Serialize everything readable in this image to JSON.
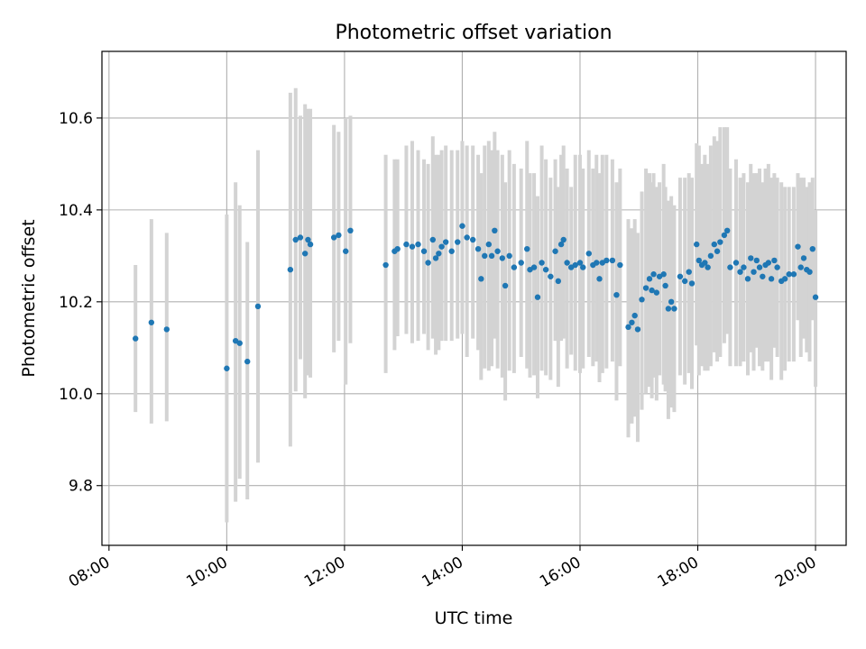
{
  "chart_data": {
    "type": "scatter",
    "title": "Photometric offset variation",
    "xlabel": "UTC time",
    "ylabel": "Photometric offset",
    "x_unit": "hours UTC",
    "xlim": [
      7.88,
      20.52
    ],
    "ylim": [
      9.67,
      10.745
    ],
    "xticks": [
      {
        "v": 8,
        "label": "08:00"
      },
      {
        "v": 10,
        "label": "10:00"
      },
      {
        "v": 12,
        "label": "12:00"
      },
      {
        "v": 14,
        "label": "14:00"
      },
      {
        "v": 16,
        "label": "16:00"
      },
      {
        "v": 18,
        "label": "18:00"
      },
      {
        "v": 20,
        "label": "20:00"
      }
    ],
    "yticks": [
      {
        "v": 9.8,
        "label": "9.8"
      },
      {
        "v": 10.0,
        "label": "10.0"
      },
      {
        "v": 10.2,
        "label": "10.2"
      },
      {
        "v": 10.4,
        "label": "10.4"
      },
      {
        "v": 10.6,
        "label": "10.6"
      }
    ],
    "grid": true,
    "marker_color": "#1f77b4",
    "errorbar_color": "#d3d3d3",
    "points": [
      [
        8.45,
        10.12,
        10.28,
        9.96
      ],
      [
        8.72,
        10.155,
        10.38,
        9.935
      ],
      [
        8.98,
        10.14,
        10.35,
        9.94
      ],
      [
        10.0,
        10.055,
        10.39,
        9.72
      ],
      [
        10.15,
        10.115,
        10.46,
        9.765
      ],
      [
        10.22,
        10.11,
        10.41,
        9.815
      ],
      [
        10.35,
        10.07,
        10.33,
        9.77
      ],
      [
        10.53,
        10.19,
        10.53,
        9.85
      ],
      [
        11.08,
        10.27,
        10.655,
        9.885
      ],
      [
        11.17,
        10.335,
        10.665,
        10.005
      ],
      [
        11.25,
        10.34,
        10.605,
        10.075
      ],
      [
        11.33,
        10.305,
        10.63,
        9.99
      ],
      [
        11.38,
        10.335,
        10.62,
        10.04
      ],
      [
        11.42,
        10.325,
        10.62,
        10.035
      ],
      [
        11.82,
        10.34,
        10.585,
        10.09
      ],
      [
        11.9,
        10.345,
        10.57,
        10.115
      ],
      [
        12.02,
        10.31,
        10.6,
        10.02
      ],
      [
        12.1,
        10.355,
        10.605,
        10.11
      ],
      [
        12.7,
        10.28,
        10.52,
        10.045
      ],
      [
        12.85,
        10.31,
        10.51,
        10.095
      ],
      [
        12.9,
        10.315,
        10.51,
        10.125
      ],
      [
        13.05,
        10.325,
        10.54,
        10.13
      ],
      [
        13.15,
        10.32,
        10.55,
        10.11
      ],
      [
        13.25,
        10.325,
        10.53,
        10.115
      ],
      [
        13.35,
        10.31,
        10.51,
        10.13
      ],
      [
        13.42,
        10.285,
        10.5,
        10.095
      ],
      [
        13.5,
        10.335,
        10.56,
        10.12
      ],
      [
        13.55,
        10.295,
        10.52,
        10.085
      ],
      [
        13.6,
        10.305,
        10.52,
        10.095
      ],
      [
        13.65,
        10.32,
        10.53,
        10.115
      ],
      [
        13.72,
        10.33,
        10.54,
        10.115
      ],
      [
        13.82,
        10.31,
        10.53,
        10.115
      ],
      [
        13.92,
        10.33,
        10.53,
        10.12
      ],
      [
        14.0,
        10.365,
        10.55,
        10.13
      ],
      [
        14.08,
        10.34,
        10.54,
        10.08
      ],
      [
        14.18,
        10.335,
        10.54,
        10.12
      ],
      [
        14.27,
        10.315,
        10.52,
        10.095
      ],
      [
        14.32,
        10.25,
        10.48,
        10.03
      ],
      [
        14.38,
        10.3,
        10.54,
        10.055
      ],
      [
        14.45,
        10.325,
        10.55,
        10.05
      ],
      [
        14.5,
        10.3,
        10.53,
        10.06
      ],
      [
        14.55,
        10.355,
        10.57,
        10.12
      ],
      [
        14.6,
        10.31,
        10.53,
        10.055
      ],
      [
        14.68,
        10.295,
        10.52,
        10.035
      ],
      [
        14.73,
        10.235,
        10.46,
        9.985
      ],
      [
        14.8,
        10.3,
        10.53,
        10.05
      ],
      [
        14.88,
        10.275,
        10.5,
        10.045
      ],
      [
        15.0,
        10.285,
        10.49,
        10.08
      ],
      [
        15.1,
        10.315,
        10.55,
        10.055
      ],
      [
        15.15,
        10.27,
        10.48,
        10.035
      ],
      [
        15.22,
        10.275,
        10.48,
        10.04
      ],
      [
        15.28,
        10.21,
        10.43,
        9.99
      ],
      [
        15.35,
        10.285,
        10.54,
        10.05
      ],
      [
        15.42,
        10.27,
        10.51,
        10.04
      ],
      [
        15.5,
        10.255,
        10.47,
        10.03
      ],
      [
        15.58,
        10.31,
        10.51,
        10.115
      ],
      [
        15.63,
        10.245,
        10.45,
        10.015
      ],
      [
        15.68,
        10.325,
        10.52,
        10.115
      ],
      [
        15.72,
        10.335,
        10.54,
        10.12
      ],
      [
        15.78,
        10.285,
        10.49,
        10.055
      ],
      [
        15.85,
        10.275,
        10.45,
        10.085
      ],
      [
        15.92,
        10.28,
        10.52,
        10.05
      ],
      [
        16.0,
        10.285,
        10.52,
        10.045
      ],
      [
        16.05,
        10.275,
        10.49,
        10.055
      ],
      [
        16.15,
        10.305,
        10.53,
        10.08
      ],
      [
        16.22,
        10.28,
        10.49,
        10.06
      ],
      [
        16.28,
        10.285,
        10.52,
        10.07
      ],
      [
        16.33,
        10.25,
        10.48,
        10.025
      ],
      [
        16.38,
        10.285,
        10.52,
        10.045
      ],
      [
        16.45,
        10.29,
        10.52,
        10.055
      ],
      [
        16.55,
        10.29,
        10.51,
        10.07
      ],
      [
        16.62,
        10.215,
        10.46,
        9.985
      ],
      [
        16.68,
        10.28,
        10.49,
        10.06
      ],
      [
        16.82,
        10.145,
        10.38,
        9.905
      ],
      [
        16.88,
        10.155,
        10.36,
        9.935
      ],
      [
        16.93,
        10.17,
        10.38,
        9.95
      ],
      [
        16.98,
        10.14,
        10.35,
        9.895
      ],
      [
        17.05,
        10.205,
        10.44,
        9.965
      ],
      [
        17.12,
        10.23,
        10.49,
        10.0
      ],
      [
        17.18,
        10.25,
        10.48,
        10.015
      ],
      [
        17.22,
        10.225,
        10.46,
        9.99
      ],
      [
        17.25,
        10.26,
        10.48,
        10.035
      ],
      [
        17.3,
        10.22,
        10.45,
        9.985
      ],
      [
        17.35,
        10.255,
        10.46,
        10.04
      ],
      [
        17.42,
        10.26,
        10.5,
        10.02
      ],
      [
        17.45,
        10.235,
        10.45,
        10.005
      ],
      [
        17.5,
        10.185,
        10.42,
        9.945
      ],
      [
        17.55,
        10.2,
        10.43,
        9.97
      ],
      [
        17.6,
        10.185,
        10.41,
        9.96
      ],
      [
        17.7,
        10.255,
        10.47,
        10.04
      ],
      [
        17.78,
        10.245,
        10.47,
        10.02
      ],
      [
        17.85,
        10.265,
        10.48,
        10.045
      ],
      [
        17.9,
        10.24,
        10.47,
        10.01
      ],
      [
        17.98,
        10.325,
        10.545,
        10.105
      ],
      [
        18.02,
        10.29,
        10.54,
        10.04
      ],
      [
        18.07,
        10.28,
        10.5,
        10.06
      ],
      [
        18.12,
        10.285,
        10.52,
        10.05
      ],
      [
        18.17,
        10.275,
        10.5,
        10.05
      ],
      [
        18.22,
        10.3,
        10.54,
        10.06
      ],
      [
        18.28,
        10.325,
        10.56,
        10.09
      ],
      [
        18.33,
        10.31,
        10.55,
        10.07
      ],
      [
        18.38,
        10.33,
        10.58,
        10.08
      ],
      [
        18.45,
        10.345,
        10.58,
        10.11
      ],
      [
        18.5,
        10.355,
        10.58,
        10.13
      ],
      [
        18.55,
        10.275,
        10.49,
        10.06
      ],
      [
        18.65,
        10.285,
        10.51,
        10.06
      ],
      [
        18.72,
        10.265,
        10.47,
        10.06
      ],
      [
        18.78,
        10.275,
        10.48,
        10.07
      ],
      [
        18.85,
        10.25,
        10.46,
        10.04
      ],
      [
        18.9,
        10.295,
        10.5,
        10.09
      ],
      [
        18.95,
        10.265,
        10.48,
        10.05
      ],
      [
        19.0,
        10.29,
        10.48,
        10.1
      ],
      [
        19.05,
        10.275,
        10.49,
        10.06
      ],
      [
        19.1,
        10.255,
        10.46,
        10.05
      ],
      [
        19.15,
        10.28,
        10.49,
        10.07
      ],
      [
        19.2,
        10.285,
        10.5,
        10.07
      ],
      [
        19.25,
        10.25,
        10.47,
        10.03
      ],
      [
        19.3,
        10.29,
        10.48,
        10.1
      ],
      [
        19.35,
        10.275,
        10.47,
        10.08
      ],
      [
        19.42,
        10.245,
        10.46,
        10.03
      ],
      [
        19.48,
        10.25,
        10.45,
        10.05
      ],
      [
        19.55,
        10.26,
        10.45,
        10.07
      ],
      [
        19.63,
        10.26,
        10.45,
        10.07
      ],
      [
        19.7,
        10.32,
        10.48,
        10.16
      ],
      [
        19.75,
        10.275,
        10.47,
        10.08
      ],
      [
        19.8,
        10.295,
        10.47,
        10.12
      ],
      [
        19.85,
        10.27,
        10.45,
        10.09
      ],
      [
        19.9,
        10.265,
        10.46,
        10.07
      ],
      [
        19.95,
        10.315,
        10.47,
        10.16
      ],
      [
        20.0,
        10.21,
        10.4,
        10.015
      ]
    ]
  }
}
